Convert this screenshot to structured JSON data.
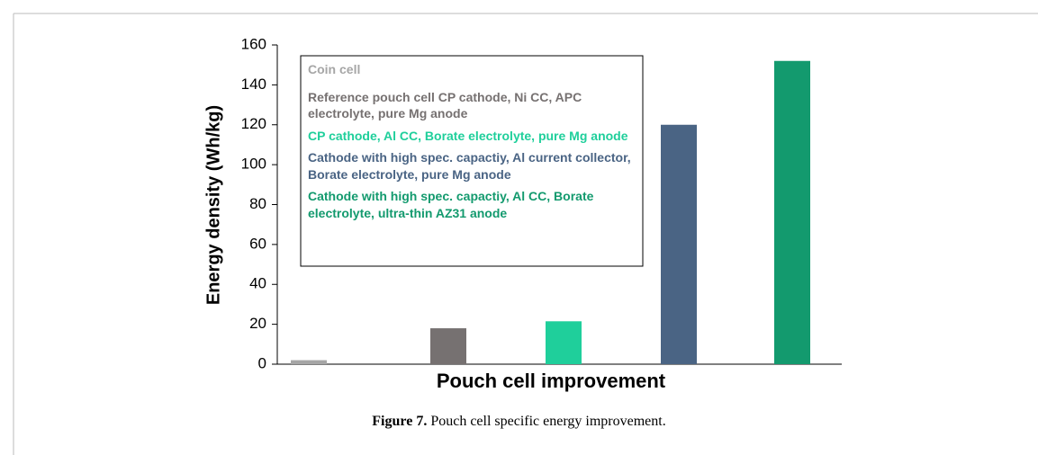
{
  "chart_data": {
    "type": "bar",
    "ylabel": "Energy density (Wh/kg)",
    "xlabel": "Pouch cell improvement",
    "ylim": [
      0,
      160
    ],
    "yticks": [
      0,
      20,
      40,
      60,
      80,
      100,
      120,
      140,
      160
    ],
    "series": [
      {
        "name": "Coin cell",
        "color": "#a6a6a6",
        "values": [
          2
        ]
      },
      {
        "name": "Reference pouch cell CP cathode, Ni CC, APC electrolyte, pure Mg anode",
        "color": "#767171",
        "values": [
          18
        ]
      },
      {
        "name": "CP cathode, Al CC,  Borate electrolyte, pure Mg anode",
        "color": "#1fcf9b",
        "values": [
          21.5
        ]
      },
      {
        "name": "Cathode with high spec. capactiy, Al current collector, Borate electrolyte, pure Mg anode",
        "color": "#4a6484",
        "values": [
          120
        ]
      },
      {
        "name": "Cathode with high spec. capactiy, Al CC, Borate electrolyte, ultra-thin AZ31 anode",
        "color": "#139a6e",
        "values": [
          152
        ]
      }
    ]
  },
  "caption": {
    "label": "Figure 7.",
    "text": "Pouch cell specific energy improvement."
  }
}
